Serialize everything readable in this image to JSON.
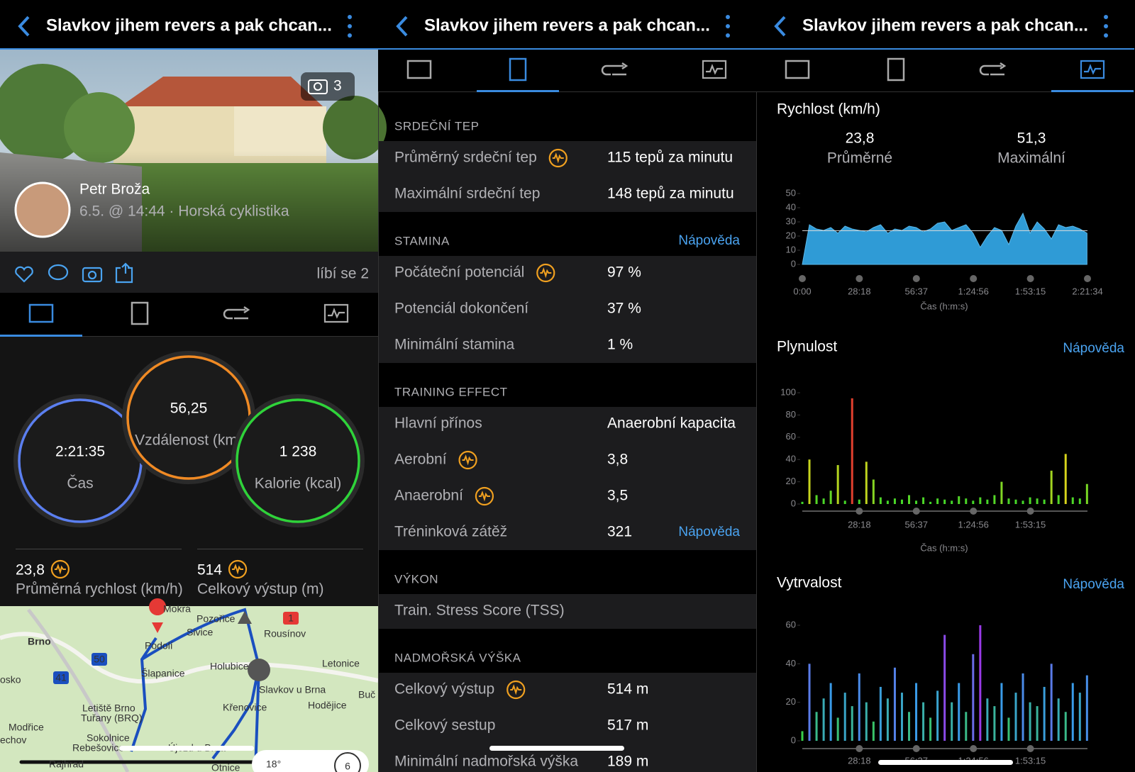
{
  "header": {
    "title": "Slavkov jihem revers a pak chcan..."
  },
  "activity": {
    "photo_count": "3",
    "athlete": "Petr Broža",
    "subtitle": "6.5. @ 14:44 · Horská cyklistika",
    "likes": "líbí se 2",
    "circles": [
      {
        "value": "2:21:35",
        "label": "Čas",
        "color": "#5b7ff0"
      },
      {
        "value": "56,25",
        "label": "Vzdálenost (km)",
        "color": "#f08a24"
      },
      {
        "value": "1 238",
        "label": "Kalorie (kcal)",
        "color": "#2fd33a"
      }
    ],
    "stats": [
      {
        "value": "23,8",
        "label": "Průměrná rychlost (km/h)"
      },
      {
        "value": "514",
        "label": "Celkový výstup (m)"
      }
    ],
    "map_labels": [
      "Brno",
      "Mokrá",
      "Pozořice",
      "Sivice",
      "Rousínov",
      "Podolí",
      "Šlapanice",
      "Holubice",
      "Letonice",
      "Slavkov u Brna",
      "Křenovice",
      "Hodějice",
      "Letiště Brno",
      "Tuřany (BRQ)",
      "Modřice",
      "Sokolnice",
      "Rebešovice",
      "Újezd u Brna",
      "Rajhrad",
      "echov",
      "osko",
      "Buč",
      "Otnice"
    ],
    "road_shields": [
      "50",
      "41",
      "1"
    ],
    "weather": "18°",
    "wind": "6"
  },
  "details": {
    "sections": [
      {
        "title": "SRDEČNÍ TEP",
        "rows": [
          {
            "label": "Průměrný srdeční tep",
            "value": "115 tepů za minutu",
            "icon": true
          },
          {
            "label": "Maximální srdeční tep",
            "value": "148 tepů za minutu"
          }
        ]
      },
      {
        "title": "STAMINA",
        "help": "Nápověda",
        "rows": [
          {
            "label": "Počáteční potenciál",
            "value": "97 %",
            "icon": true
          },
          {
            "label": "Potenciál dokončení",
            "value": "37 %"
          },
          {
            "label": "Minimální stamina",
            "value": "1 %"
          }
        ]
      },
      {
        "title": "TRAINING EFFECT",
        "rows": [
          {
            "label": "Hlavní přínos",
            "value": "Anaerobní kapacita"
          },
          {
            "label": "Aerobní",
            "value": "3,8",
            "icon": true
          },
          {
            "label": "Anaerobní",
            "value": "3,5",
            "icon": true
          },
          {
            "label": "Tréninková zátěž",
            "value": "321",
            "help": "Nápověda"
          }
        ]
      },
      {
        "title": "VÝKON",
        "rows": [
          {
            "label": "Train. Stress Score (TSS)"
          }
        ]
      },
      {
        "title": "NADMOŘSKÁ VÝŠKA",
        "rows": [
          {
            "label": "Celkový výstup",
            "value": "514 m",
            "icon": true
          },
          {
            "label": "Celkový sestup",
            "value": "517 m"
          },
          {
            "label": "Minimální nadmořská výška",
            "value": "189 m"
          }
        ]
      }
    ]
  },
  "chart_data": [
    {
      "type": "area",
      "title": "Rychlost (km/h)",
      "x_label": "Čas (h:m:s)",
      "summary": [
        {
          "value": 23.8,
          "label": "23,8",
          "name": "Průměrné"
        },
        {
          "value": 51.3,
          "label": "51,3",
          "name": "Maximální"
        }
      ],
      "x": [
        0,
        212,
        424,
        636,
        848,
        1060,
        1272,
        1484,
        1696,
        1908,
        2120,
        2332,
        2544,
        2756,
        2968,
        3180,
        3392,
        3604,
        3816,
        4028,
        4240,
        4452,
        4664,
        4876,
        5088,
        5300,
        5512,
        5724,
        5936,
        6148,
        6360,
        6572,
        6784,
        6996,
        7208,
        7420,
        7632,
        7844,
        8056,
        8268,
        8480
      ],
      "series": [
        {
          "name": "Rychlost",
          "color": "#2f9bd6",
          "values": [
            0,
            28,
            25,
            24,
            26,
            22,
            27,
            25,
            24,
            23,
            26,
            28,
            22,
            25,
            24,
            27,
            26,
            23,
            25,
            29,
            30,
            24,
            26,
            28,
            22,
            12,
            20,
            26,
            24,
            14,
            27,
            36,
            22,
            30,
            25,
            18,
            28,
            26,
            27,
            25,
            22
          ]
        }
      ],
      "xlim": [
        0,
        8494
      ],
      "ylim": [
        0,
        50
      ],
      "yticks": [
        0,
        10,
        20,
        30,
        40,
        50
      ],
      "xticks": [
        {
          "value": 0,
          "label": "0:00"
        },
        {
          "value": 1698,
          "label": "28:18"
        },
        {
          "value": 3397,
          "label": "56:37"
        },
        {
          "value": 5096,
          "label": "1:24:56"
        },
        {
          "value": 6795,
          "label": "1:53:15"
        },
        {
          "value": 8494,
          "label": "2:21:34"
        }
      ]
    },
    {
      "type": "bar",
      "title": "Plynulost",
      "help": "Nápověda",
      "x_label": "Čas (h:m:s)",
      "color_scale": [
        "#39d82a",
        "#e8d21a",
        "#e03030"
      ],
      "x": [
        0,
        212,
        424,
        636,
        848,
        1060,
        1272,
        1484,
        1696,
        1908,
        2120,
        2332,
        2544,
        2756,
        2968,
        3180,
        3392,
        3604,
        3816,
        4028,
        4240,
        4452,
        4664,
        4876,
        5088,
        5300,
        5512,
        5724,
        5936,
        6148,
        6360,
        6572,
        6784,
        6996,
        7208,
        7420,
        7632,
        7844,
        8056,
        8268,
        8480
      ],
      "series": [
        {
          "name": "Plynulost",
          "values": [
            2,
            40,
            8,
            5,
            12,
            35,
            3,
            95,
            4,
            38,
            22,
            6,
            3,
            5,
            4,
            8,
            3,
            6,
            2,
            5,
            4,
            3,
            7,
            5,
            3,
            6,
            4,
            8,
            20,
            5,
            4,
            3,
            6,
            5,
            4,
            30,
            8,
            45,
            6,
            5,
            18
          ]
        }
      ],
      "xlim": [
        0,
        8494
      ],
      "ylim": [
        0,
        100
      ],
      "yticks": [
        0,
        20,
        40,
        60,
        80,
        100
      ],
      "xticks": [
        {
          "value": 1698,
          "label": "28:18"
        },
        {
          "value": 3397,
          "label": "56:37"
        },
        {
          "value": 5096,
          "label": "1:24:56"
        },
        {
          "value": 6795,
          "label": "1:53:15"
        }
      ]
    },
    {
      "type": "bar",
      "title": "Vytrvalost",
      "help": "Nápověda",
      "color_scale": [
        "#39d82a",
        "#3a9be8",
        "#9a3ae8"
      ],
      "x": [
        0,
        212,
        424,
        636,
        848,
        1060,
        1272,
        1484,
        1696,
        1908,
        2120,
        2332,
        2544,
        2756,
        2968,
        3180,
        3392,
        3604,
        3816,
        4028,
        4240,
        4452,
        4664,
        4876,
        5088,
        5300,
        5512,
        5724,
        5936,
        6148,
        6360,
        6572,
        6784,
        6996,
        7208,
        7420,
        7632,
        7844,
        8056,
        8268,
        8480
      ],
      "series": [
        {
          "name": "Vytrvalost",
          "values": [
            5,
            40,
            15,
            22,
            30,
            12,
            25,
            18,
            35,
            20,
            10,
            28,
            22,
            38,
            25,
            15,
            30,
            20,
            12,
            26,
            55,
            20,
            30,
            15,
            45,
            60,
            22,
            18,
            30,
            12,
            25,
            35,
            20,
            18,
            28,
            40,
            22,
            15,
            30,
            25,
            34
          ]
        }
      ],
      "xlim": [
        0,
        8494
      ],
      "ylim": [
        0,
        60
      ],
      "yticks": [
        0,
        20,
        40,
        60
      ],
      "xticks": [
        {
          "value": 1698,
          "label": "28:18"
        },
        {
          "value": 3397,
          "label": "56:37"
        },
        {
          "value": 5096,
          "label": "1:24:56"
        },
        {
          "value": 6795,
          "label": "1:53:15"
        }
      ]
    }
  ]
}
